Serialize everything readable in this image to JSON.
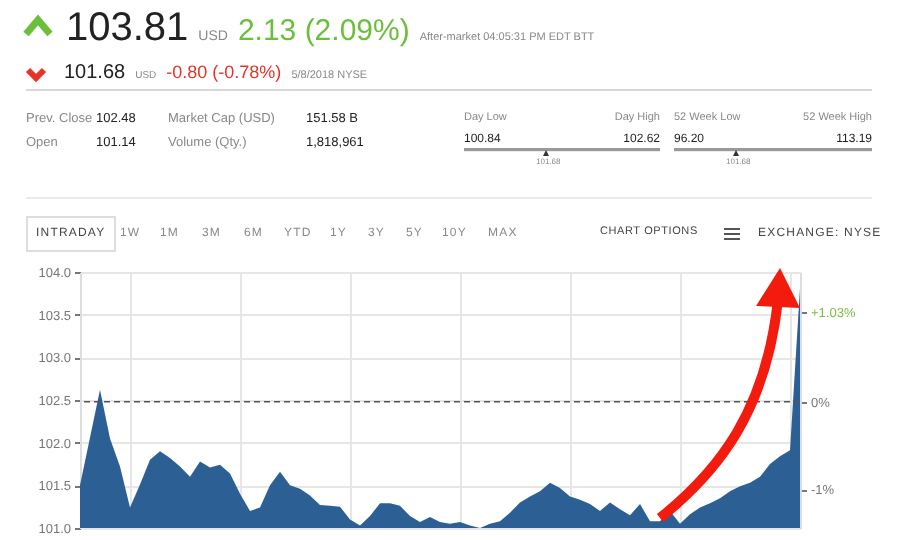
{
  "chart_data": {
    "type": "area",
    "categories": [
      null,
      null,
      null,
      null,
      null,
      null,
      null,
      null,
      null,
      null,
      null,
      null,
      null,
      null,
      null,
      null,
      null,
      null,
      null,
      null,
      null,
      null,
      null,
      null,
      null,
      null,
      null,
      null,
      null,
      null,
      null,
      null,
      null,
      null,
      null,
      null,
      null,
      null,
      null,
      null,
      null,
      null,
      null,
      null,
      null,
      null,
      null,
      null,
      null,
      null,
      null,
      null,
      null,
      null,
      null,
      null,
      null,
      null,
      null,
      null,
      null,
      null,
      null,
      null,
      null,
      null,
      null,
      null,
      null,
      null,
      null,
      null,
      null
    ],
    "values": [
      101.5,
      102.06,
      102.62,
      102.05,
      101.72,
      101.24,
      101.51,
      101.8,
      101.9,
      101.82,
      101.72,
      101.6,
      101.78,
      101.71,
      101.74,
      101.64,
      101.4,
      101.2,
      101.24,
      101.5,
      101.66,
      101.5,
      101.46,
      101.38,
      101.27,
      101.26,
      101.25,
      101.1,
      101.03,
      101.14,
      101.29,
      101.29,
      101.26,
      101.14,
      101.07,
      101.13,
      101.07,
      101.05,
      101.07,
      101.03,
      101.0,
      101.05,
      101.08,
      101.18,
      101.3,
      101.37,
      101.43,
      101.53,
      101.47,
      101.37,
      101.33,
      101.28,
      101.2,
      101.3,
      101.22,
      101.15,
      101.28,
      101.08,
      101.08,
      101.2,
      101.05,
      101.16,
      101.24,
      101.29,
      101.35,
      101.43,
      101.49,
      101.53,
      101.6,
      101.75,
      101.84,
      101.91,
      103.81
    ],
    "color": "#2c5f94",
    "ylim": [
      101.0,
      104.0
    ],
    "yticks": [
      {
        "value": 101,
        "label": "101.0"
      },
      101.5,
      {
        "value": 102,
        "label": "102.0"
      },
      102.5,
      {
        "value": 103,
        "label": "103.0"
      },
      103.5,
      {
        "value": 104,
        "label": "104.0"
      }
    ],
    "y2lim": [
      -1.444,
      1.483
    ],
    "y2ticks": [
      {
        "value": -1,
        "label": "-1%"
      },
      {
        "value": 0,
        "label": "0%"
      },
      {
        "value": 1.03,
        "label": "+1.03%"
      }
    ],
    "ref_lines": [
      {
        "axis": "y2",
        "value": 0,
        "line_style": "dashed",
        "color": "#555555"
      }
    ],
    "grid": true,
    "tick_labels": "y",
    "annotations": [
      "103.81",
      "USD",
      "2.13 (2.09%)",
      "After-market 04:05:31 PM EDT BTT",
      "101.68",
      "USD",
      "-0.80 (-0.78%)",
      "5/8/2018 NYSE",
      "Prev. Close",
      "102.48",
      "Open",
      "101.14",
      "Market Cap (USD)",
      "151.58 B",
      "Volume (Qty.)",
      "1,818,961",
      "Day Low",
      "100.84",
      "Day High",
      "102.62",
      "101.68",
      "52 Week Low",
      "96.20",
      "52 Week High",
      "113.19",
      "101.68",
      "INTRADAY",
      "1W",
      "1M",
      "3M",
      "6M",
      "YTD",
      "1Y",
      "3Y",
      "5Y",
      "10Y",
      "MAX",
      "CHART OPTIONS",
      "EXCHANGE: NYSE"
    ]
  }
}
